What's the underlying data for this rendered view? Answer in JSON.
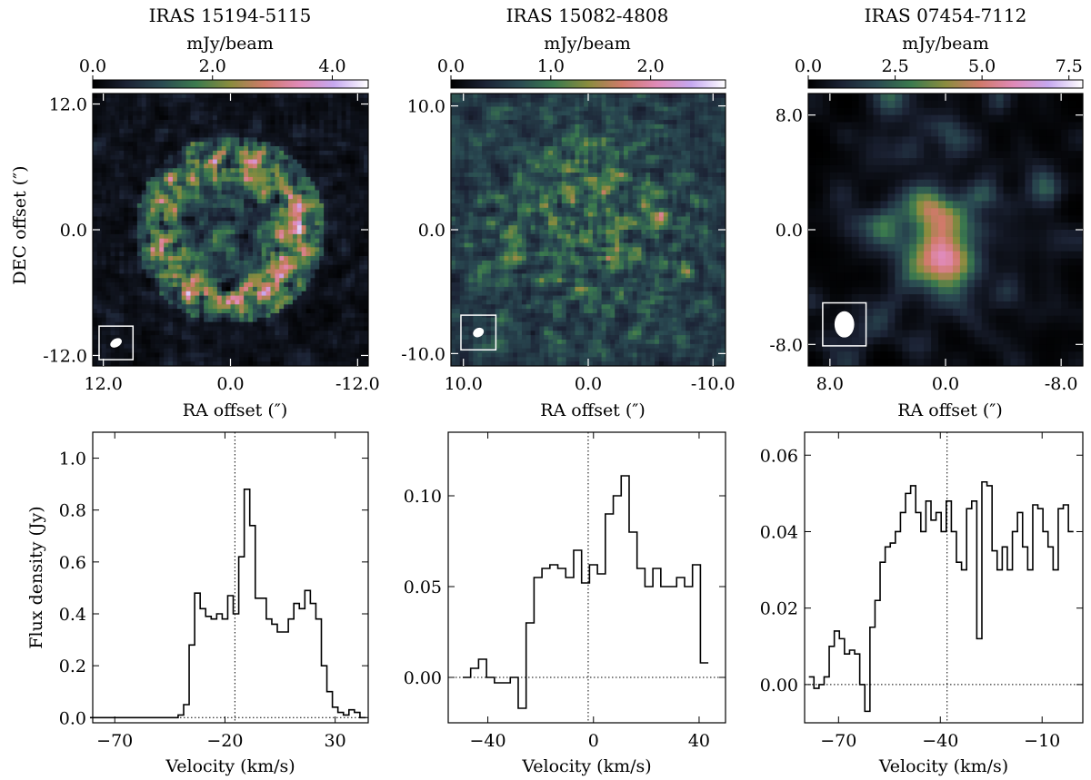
{
  "common": {
    "colorbar_unit": "mJy/beam",
    "map_xlabel": "RA offset (″)",
    "map_ylabel": "DEC offset (″)",
    "spec_xlabel": "Velocity (km/s)",
    "spec_ylabel": "Flux density (Jy)",
    "colormap": [
      "#000000",
      "#1c2335",
      "#2a4a52",
      "#3b7a4e",
      "#8a8c3e",
      "#d07a6a",
      "#e08ab8",
      "#c6a8f0",
      "#ffffff"
    ]
  },
  "chart_data": [
    {
      "type": "heatmap",
      "title": "IRAS 15194-5115",
      "colorbar": {
        "min": 0.0,
        "max": 4.6,
        "ticks": [
          0.0,
          2.0,
          4.0
        ],
        "tick_labels": [
          "0.0",
          "2.0",
          "4.0"
        ]
      },
      "xlim": [
        13.0,
        -13.0
      ],
      "ylim": [
        -13.0,
        13.0
      ],
      "xticks": [
        12.0,
        0.0,
        -12.0
      ],
      "xtick_labels": [
        "12.0",
        "0.0",
        "-12.0"
      ],
      "yticks": [
        12.0,
        0.0,
        -12.0
      ],
      "ytick_labels": [
        "12.0",
        "0.0",
        "-12.0"
      ],
      "structure": "ring",
      "ring_radius": 6.5,
      "beam": {
        "ra": 10.8,
        "dec": -10.8,
        "major": 0.9,
        "minor": 0.6,
        "box_half": 1.6
      }
    },
    {
      "type": "heatmap",
      "title": "IRAS 15082-4808",
      "colorbar": {
        "min": 0.0,
        "max": 2.75,
        "ticks": [
          0.0,
          1.0,
          2.0
        ],
        "tick_labels": [
          "0.0",
          "1.0",
          "2.0"
        ]
      },
      "xlim": [
        11.0,
        -11.0
      ],
      "ylim": [
        -11.0,
        11.0
      ],
      "xticks": [
        10.0,
        0.0,
        -10.0
      ],
      "xtick_labels": [
        "10.0",
        "0.0",
        "-10.0"
      ],
      "yticks": [
        10.0,
        0.0,
        -10.0
      ],
      "ytick_labels": [
        "10.0",
        "0.0",
        "-10.0"
      ],
      "structure": "clumpy",
      "beam": {
        "ra": 8.8,
        "dec": -8.3,
        "major": 0.7,
        "minor": 0.55,
        "box_half": 1.4
      }
    },
    {
      "type": "heatmap",
      "title": "IRAS 07454-7112",
      "colorbar": {
        "min": 0.0,
        "max": 7.9,
        "ticks": [
          0.0,
          2.5,
          5.0,
          7.5
        ],
        "tick_labels": [
          "0.0",
          "2.5",
          "5.0",
          "7.5"
        ]
      },
      "xlim": [
        9.5,
        -9.5
      ],
      "ylim": [
        -9.5,
        9.5
      ],
      "xticks": [
        8.0,
        0.0,
        -8.0
      ],
      "xtick_labels": [
        "8.0",
        "0.0",
        "-8.0"
      ],
      "yticks": [
        8.0,
        0.0,
        -8.0
      ],
      "ytick_labels": [
        "8.0",
        "0.0",
        "-8.0"
      ],
      "structure": "central",
      "beam": {
        "ra": 7.0,
        "dec": -6.6,
        "major": 1.4,
        "minor": 1.05,
        "box_half": 1.5
      }
    },
    {
      "type": "line",
      "step": true,
      "xlim": [
        -80,
        45
      ],
      "ylim": [
        -0.02,
        1.1
      ],
      "xticks": [
        -70,
        -20,
        30
      ],
      "xtick_labels": [
        "−70",
        "−20",
        "30"
      ],
      "yticks": [
        0.0,
        0.2,
        0.4,
        0.6,
        0.8,
        1.0
      ],
      "ytick_labels": [
        "0.0",
        "0.2",
        "0.4",
        "0.6",
        "0.8",
        "1.0"
      ],
      "vline": -15.5,
      "hline": 0.0,
      "x": [
        -80,
        -77.5,
        -75,
        -72.5,
        -70,
        -67.5,
        -65,
        -62.5,
        -60,
        -57.5,
        -55,
        -52.5,
        -50,
        -47.5,
        -45,
        -42.5,
        -40,
        -37.5,
        -35,
        -32.5,
        -30,
        -27.5,
        -25,
        -22.5,
        -20,
        -17.5,
        -15,
        -12.5,
        -10,
        -7.5,
        -5,
        -2.5,
        0,
        2.5,
        5,
        7.5,
        10,
        12.5,
        15,
        17.5,
        20,
        22.5,
        25,
        27.5,
        30,
        32.5,
        35,
        37.5,
        40,
        42.5
      ],
      "y": [
        0.0,
        0.0,
        0.0,
        0.0,
        0.0,
        0.0,
        0.0,
        0.0,
        0.0,
        0.0,
        0.0,
        0.0,
        0.0,
        0.0,
        0.0,
        0.0,
        0.01,
        0.05,
        0.28,
        0.48,
        0.42,
        0.39,
        0.38,
        0.4,
        0.38,
        0.47,
        0.4,
        0.62,
        0.88,
        0.74,
        0.46,
        0.46,
        0.38,
        0.36,
        0.33,
        0.33,
        0.38,
        0.44,
        0.42,
        0.49,
        0.44,
        0.38,
        0.2,
        0.1,
        0.04,
        0.02,
        0.01,
        0.03,
        0.02,
        0.0
      ]
    },
    {
      "type": "line",
      "step": true,
      "xlim": [
        -55,
        50
      ],
      "ylim": [
        -0.025,
        0.135
      ],
      "xticks": [
        -40,
        0,
        40
      ],
      "xtick_labels": [
        "−40",
        "0",
        "40"
      ],
      "yticks": [
        0.0,
        0.05,
        0.1
      ],
      "ytick_labels": [
        "0.00",
        "0.05",
        "0.10"
      ],
      "vline": -2,
      "hline": 0.0,
      "x": [
        -48,
        -45,
        -42,
        -39,
        -36,
        -33,
        -30,
        -27,
        -24,
        -21,
        -18,
        -15,
        -12,
        -9,
        -6,
        -3,
        0,
        3,
        6,
        9,
        12,
        15,
        18,
        21,
        24,
        27,
        30,
        33,
        36,
        39,
        42
      ],
      "y": [
        0.0,
        0.005,
        0.01,
        0.0,
        -0.003,
        -0.003,
        0.0,
        -0.017,
        0.03,
        0.055,
        0.06,
        0.062,
        0.06,
        0.055,
        0.07,
        0.052,
        0.062,
        0.057,
        0.09,
        0.1,
        0.111,
        0.08,
        0.06,
        0.05,
        0.06,
        0.05,
        0.05,
        0.055,
        0.05,
        0.062,
        0.008
      ]
    },
    {
      "type": "line",
      "step": true,
      "xlim": [
        -80,
        2
      ],
      "ylim": [
        -0.01,
        0.066
      ],
      "xticks": [
        -70,
        -40,
        -10
      ],
      "xtick_labels": [
        "−70",
        "−40",
        "−10"
      ],
      "yticks": [
        0.0,
        0.02,
        0.04,
        0.06
      ],
      "ytick_labels": [
        "0.00",
        "0.02",
        "0.04",
        "0.06"
      ],
      "vline": -38,
      "hline": 0.0,
      "x": [
        -78,
        -76.5,
        -75,
        -73.5,
        -72,
        -70.5,
        -69,
        -67.5,
        -66,
        -64.5,
        -63,
        -61.5,
        -60,
        -58.5,
        -57,
        -55.5,
        -54,
        -52.5,
        -51,
        -49.5,
        -48,
        -46.5,
        -45,
        -43.5,
        -42,
        -40.5,
        -39,
        -37.5,
        -36,
        -34.5,
        -33,
        -31.5,
        -30,
        -28.5,
        -27,
        -25.5,
        -24,
        -22.5,
        -21,
        -19.5,
        -18,
        -16.5,
        -15,
        -13.5,
        -12,
        -10.5,
        -9,
        -7.5,
        -6,
        -4.5,
        -3,
        -1.5
      ],
      "y": [
        0.002,
        -0.001,
        0.0,
        0.002,
        0.01,
        0.014,
        0.012,
        0.008,
        0.009,
        0.008,
        0.0,
        -0.007,
        0.015,
        0.022,
        0.032,
        0.036,
        0.037,
        0.04,
        0.045,
        0.05,
        0.052,
        0.045,
        0.04,
        0.048,
        0.043,
        0.045,
        0.04,
        0.048,
        0.04,
        0.032,
        0.03,
        0.046,
        0.048,
        0.012,
        0.053,
        0.052,
        0.035,
        0.03,
        0.036,
        0.03,
        0.04,
        0.045,
        0.036,
        0.03,
        0.047,
        0.046,
        0.04,
        0.036,
        0.03,
        0.046,
        0.047,
        0.04
      ]
    }
  ]
}
